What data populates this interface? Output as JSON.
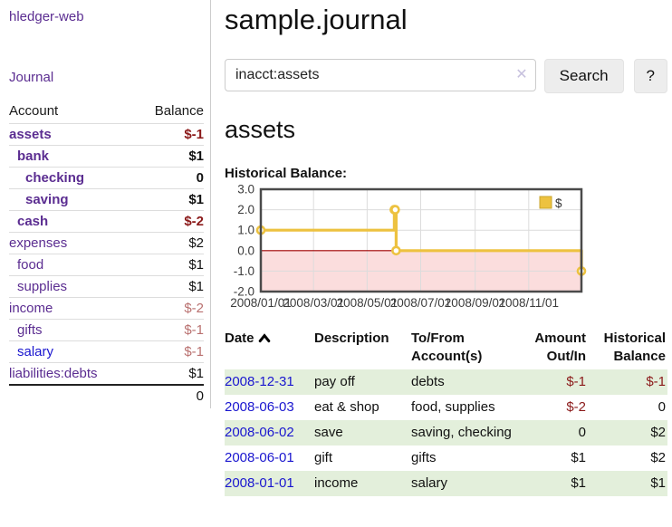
{
  "colors": {
    "purple": "#5b2d91",
    "blue": "#1a16cf",
    "negative": "#8b1a1a",
    "muted_negative": "#b9706f",
    "stripe": "#e3efdb",
    "border": "#dddddd"
  },
  "app": {
    "title": "hledger-web",
    "nav_journal": "Journal"
  },
  "sidebar": {
    "accounts_header": {
      "account": "Account",
      "balance": "Balance"
    },
    "accounts": [
      {
        "name": "assets",
        "indent": 1,
        "balance": "$-1",
        "bold": true,
        "balance_style": "negative",
        "link_style": "purple"
      },
      {
        "name": "bank",
        "indent": 2,
        "balance": "$1",
        "bold": true,
        "balance_style": "normal",
        "link_style": "purple"
      },
      {
        "name": "checking",
        "indent": 3,
        "balance": "0",
        "bold": true,
        "balance_style": "normal",
        "link_style": "purple"
      },
      {
        "name": "saving",
        "indent": 3,
        "balance": "$1",
        "bold": true,
        "balance_style": "normal",
        "link_style": "purple"
      },
      {
        "name": "cash",
        "indent": 2,
        "balance": "$-2",
        "bold": true,
        "balance_style": "negative",
        "link_style": "purple"
      },
      {
        "name": "expenses",
        "indent": 1,
        "balance": "$2",
        "bold": false,
        "balance_style": "normal",
        "link_style": "purple"
      },
      {
        "name": "food",
        "indent": 2,
        "balance": "$1",
        "bold": false,
        "balance_style": "normal",
        "link_style": "purple"
      },
      {
        "name": "supplies",
        "indent": 2,
        "balance": "$1",
        "bold": false,
        "balance_style": "normal",
        "link_style": "purple"
      },
      {
        "name": "income",
        "indent": 1,
        "balance": "$-2",
        "bold": false,
        "balance_style": "muted",
        "link_style": "purple"
      },
      {
        "name": "gifts",
        "indent": 2,
        "balance": "$-1",
        "bold": false,
        "balance_style": "muted",
        "link_style": "purple"
      },
      {
        "name": "salary",
        "indent": 2,
        "balance": "$-1",
        "bold": false,
        "balance_style": "muted",
        "link_style": "blue"
      },
      {
        "name": "liabilities:debts",
        "indent": 1,
        "balance": "$1",
        "bold": false,
        "balance_style": "normal",
        "link_style": "purple"
      }
    ],
    "total": "0"
  },
  "header": {
    "title": "sample.journal"
  },
  "search": {
    "query": "inacct:assets",
    "clear_icon": "✕",
    "button_label": "Search",
    "help_label": "?"
  },
  "register": {
    "account_title": "assets",
    "columns": [
      {
        "label": "Date",
        "align": "left",
        "sorted": "asc"
      },
      {
        "label": "Description",
        "align": "left"
      },
      {
        "label": "To/From Account(s)",
        "align": "left"
      },
      {
        "label": "Amount Out/In",
        "align": "right"
      },
      {
        "label": "Historical Balance",
        "align": "right"
      }
    ],
    "rows": [
      {
        "date": "2008-12-31",
        "description": "pay off",
        "accounts": "debts",
        "amount": "$-1",
        "amount_style": "negative",
        "balance": "$-1",
        "balance_style": "negative"
      },
      {
        "date": "2008-06-03",
        "description": "eat & shop",
        "accounts": "food, supplies",
        "amount": "$-2",
        "amount_style": "negative",
        "balance": "0",
        "balance_style": "normal"
      },
      {
        "date": "2008-06-02",
        "description": "save",
        "accounts": "saving, checking",
        "amount": "0",
        "amount_style": "normal",
        "balance": "$2",
        "balance_style": "normal"
      },
      {
        "date": "2008-06-01",
        "description": "gift",
        "accounts": "gifts",
        "amount": "$1",
        "amount_style": "normal",
        "balance": "$2",
        "balance_style": "normal"
      },
      {
        "date": "2008-01-01",
        "description": "income",
        "accounts": "salary",
        "amount": "$1",
        "amount_style": "normal",
        "balance": "$1",
        "balance_style": "normal"
      }
    ]
  },
  "chart_data": {
    "type": "line",
    "title": "Historical Balance:",
    "line_style": "step-after",
    "x_range": [
      "2008-01-01",
      "2008-12-31"
    ],
    "ylim": [
      -2,
      3
    ],
    "grid": true,
    "legend": {
      "position": "top-right",
      "label": "$"
    },
    "series": [
      {
        "name": "$",
        "color": "#edc240",
        "marker": "circle-open",
        "points": [
          [
            "2008-01-01",
            1
          ],
          [
            "2008-06-01",
            2
          ],
          [
            "2008-06-02",
            2
          ],
          [
            "2008-06-03",
            0
          ],
          [
            "2008-12-31",
            -1
          ]
        ]
      }
    ],
    "x_ticks": [
      {
        "date": "2008-01-01",
        "label": "2008/01/01"
      },
      {
        "date": "2008-03-01",
        "label": "2008/03/01"
      },
      {
        "date": "2008-05-01",
        "label": "2008/05/01"
      },
      {
        "date": "2008-07-01",
        "label": "2008/07/01"
      },
      {
        "date": "2008-09-01",
        "label": "2008/09/01"
      },
      {
        "date": "2008-11-01",
        "label": "2008/11/01"
      }
    ],
    "y_ticks": [
      {
        "v": 3,
        "label": "3.0"
      },
      {
        "v": 2,
        "label": "2.0"
      },
      {
        "v": 1,
        "label": "1.0"
      },
      {
        "v": 0,
        "label": "0.0"
      },
      {
        "v": -1,
        "label": "-1.0"
      },
      {
        "v": -2,
        "label": "-2.0"
      }
    ],
    "negative_region_color": "#fbdddd",
    "zero_line_color": "#a00000",
    "grid_color": "#dcdcdc",
    "plot_border_color": "#4a4a4a",
    "tick_label_color": "#3c3c3c"
  }
}
